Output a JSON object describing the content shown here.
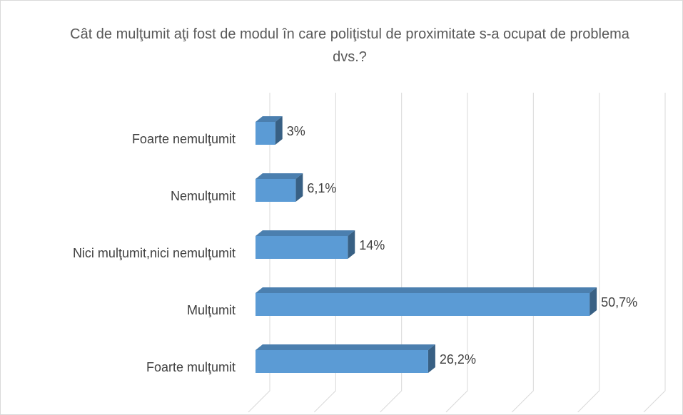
{
  "chart_data": {
    "type": "bar3d-horizontal",
    "title": "Cât de mulţumit aţi fost de modul în care poliţistul de proximitate s-a ocupat de problema dvs.?",
    "categories": [
      "Foarte nemulţumit",
      "Nemulţumit",
      "Nici mulţumit,nici nemulţumit",
      "Mulţumit",
      "Foarte mulţumit"
    ],
    "values": [
      3,
      6.1,
      14,
      50.7,
      26.2
    ],
    "value_labels": [
      "3%",
      "6,1%",
      "14%",
      "50,7%",
      "26,2%"
    ],
    "color": "#5b9bd5",
    "xlim": [
      0,
      60
    ],
    "xticks": [
      0,
      10,
      20,
      30,
      40,
      50,
      60
    ],
    "grid": true
  }
}
